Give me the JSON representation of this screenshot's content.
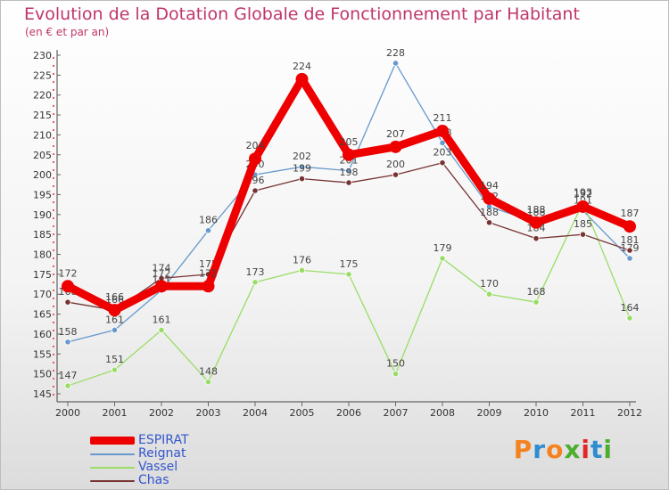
{
  "title": "Evolution de la Dotation Globale de Fonctionnement par Habitant",
  "subtitle": "(en € et par an)",
  "brand": {
    "text": "Proxiti",
    "letter_colors": [
      "#f58220",
      "#2e8ccf",
      "#f58220",
      "#4cae2f",
      "#e02828",
      "#2e8ccf",
      "#4cae2f"
    ]
  },
  "chart_data": {
    "type": "line",
    "x": [
      "2000",
      "2001",
      "2002",
      "2003",
      "2004",
      "2005",
      "2006",
      "2007",
      "2008",
      "2009",
      "2010",
      "2011",
      "2012"
    ],
    "ylim": [
      145,
      230
    ],
    "yticks": [
      145,
      150,
      155,
      160,
      165,
      170,
      175,
      180,
      185,
      190,
      195,
      200,
      205,
      210,
      215,
      220,
      225,
      230
    ],
    "xlabel": "",
    "ylabel": "",
    "grid": false,
    "legend_position": "bottom-left",
    "series": [
      {
        "name": "ESPIRAT",
        "color": "#ee0000",
        "values": [
          172,
          166,
          172,
          172,
          204,
          224,
          205,
          207,
          211,
          194,
          188,
          192,
          187
        ],
        "emphasis": true
      },
      {
        "name": "Reignat",
        "color": "#6699cc",
        "values": [
          158,
          161,
          171,
          186,
          200,
          202,
          201,
          228,
          208,
          192,
          188,
          191,
          179
        ]
      },
      {
        "name": "Vassel",
        "color": "#99dd66",
        "values": [
          147,
          151,
          161,
          148,
          173,
          176,
          175,
          150,
          179,
          170,
          168,
          193,
          164
        ]
      },
      {
        "name": "Chas",
        "color": "#773333",
        "values": [
          168,
          166,
          174,
          175,
          196,
          199,
          198,
          200,
          203,
          188,
          184,
          185,
          181
        ]
      }
    ]
  }
}
